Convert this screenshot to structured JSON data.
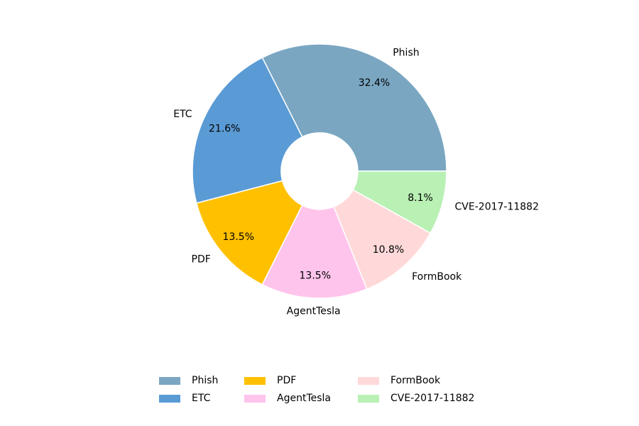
{
  "chart_data": {
    "type": "pie",
    "donut": true,
    "labels": [
      "Phish",
      "ETC",
      "PDF",
      "AgentTesla",
      "FormBook",
      "CVE-2017-11882"
    ],
    "values": [
      32.4,
      21.6,
      13.5,
      13.5,
      10.8,
      8.1
    ],
    "pct_labels": [
      "32.4%",
      "21.6%",
      "13.5%",
      "13.5%",
      "10.8%",
      "8.1%"
    ],
    "colors": [
      "#7aa6c2",
      "#5b9bd5",
      "#ffc000",
      "#ffc4ec",
      "#ffd9d9",
      "#b9f0b4"
    ],
    "start_angle_deg": 0,
    "direction": "counterclockwise",
    "legend": {
      "placement": "bottom",
      "columns": 3
    }
  }
}
